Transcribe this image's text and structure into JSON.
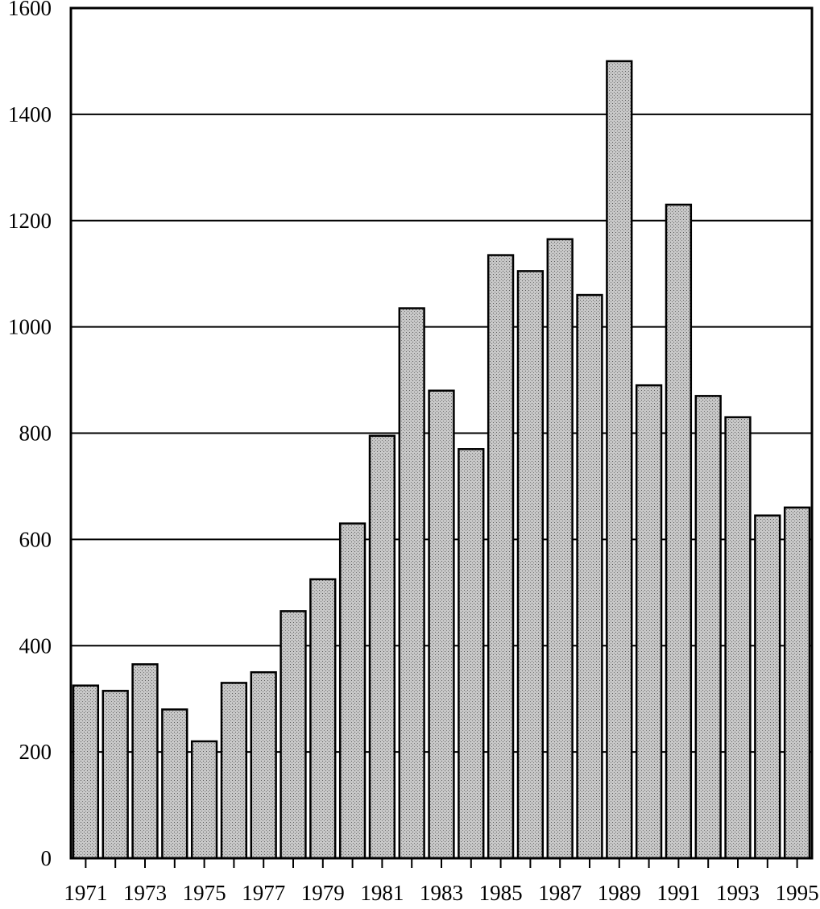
{
  "chart_data": {
    "type": "bar",
    "title": "",
    "xlabel": "",
    "ylabel": "",
    "ylim": [
      0,
      1600
    ],
    "yticks": [
      0,
      200,
      400,
      600,
      800,
      1000,
      1200,
      1400,
      1600
    ],
    "grid": "horizontal",
    "categories": [
      "1971",
      "1972",
      "1973",
      "1974",
      "1975",
      "1976",
      "1977",
      "1978",
      "1979",
      "1980",
      "1981",
      "1982",
      "1983",
      "1984",
      "1985",
      "1986",
      "1987",
      "1988",
      "1989",
      "1990",
      "1991",
      "1992",
      "1993",
      "1994",
      "1995"
    ],
    "xtick_labels": [
      "1971",
      "",
      "1973",
      "",
      "1975",
      "",
      "1977",
      "",
      "1979",
      "",
      "1981",
      "",
      "1983",
      "",
      "1985",
      "",
      "1987",
      "",
      "1989",
      "",
      "1991",
      "",
      "1993",
      "",
      "1995"
    ],
    "values": [
      325,
      315,
      365,
      280,
      220,
      330,
      350,
      465,
      525,
      630,
      795,
      1035,
      880,
      770,
      1135,
      1105,
      1165,
      1060,
      1500,
      890,
      1230,
      870,
      830,
      645,
      660
    ],
    "colors": {
      "bar_fill": "#bdbdbd",
      "bar_stroke": "#000000",
      "grid": "#000000",
      "axis": "#000000"
    }
  }
}
